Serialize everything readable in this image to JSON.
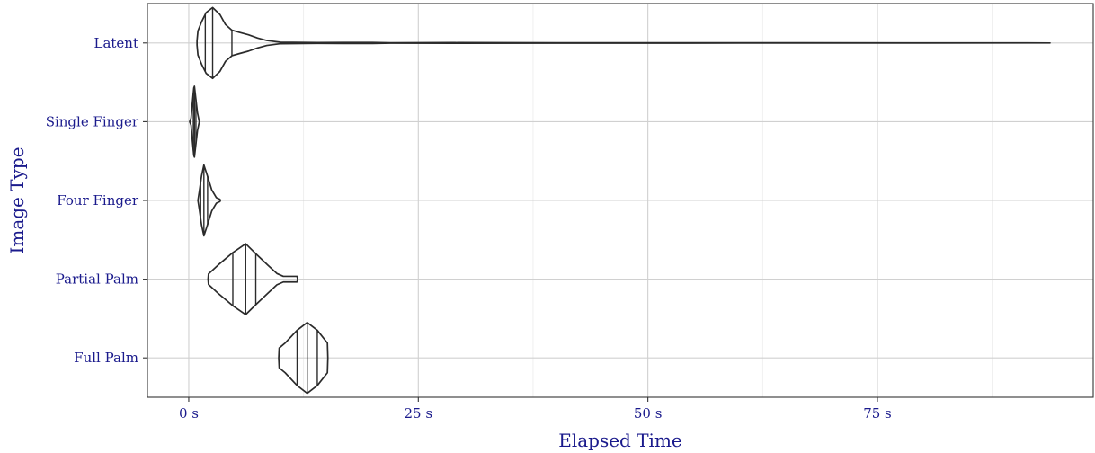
{
  "chart_data": {
    "type": "violin",
    "orientation": "horizontal",
    "xlabel": "Elapsed Time",
    "ylabel": "Image Type",
    "xlim": [
      -4.5,
      98.5
    ],
    "x_ticks": [
      {
        "value": 0,
        "label": "0 s"
      },
      {
        "value": 25,
        "label": "25 s"
      },
      {
        "value": 50,
        "label": "50 s"
      },
      {
        "value": 75,
        "label": "75 s"
      }
    ],
    "x_minor_ticks": [
      12.5,
      37.5,
      62.5,
      87.5
    ],
    "grid": true,
    "draw_quantiles": [
      0.25,
      0.5,
      0.75
    ],
    "categories": [
      "Latent",
      "Single Finger",
      "Four Finger",
      "Partial Palm",
      "Full Palm"
    ],
    "series": [
      {
        "category": "Latent",
        "quantiles": [
          1.8,
          2.6,
          4.7
        ],
        "density": [
          [
            0.9,
            0.06
          ],
          [
            1.0,
            0.34
          ],
          [
            1.4,
            0.6
          ],
          [
            1.9,
            0.86
          ],
          [
            2.6,
            1.0
          ],
          [
            3.4,
            0.8
          ],
          [
            4.0,
            0.52
          ],
          [
            4.7,
            0.36
          ],
          [
            5.5,
            0.3
          ],
          [
            6.5,
            0.23
          ],
          [
            7.5,
            0.14
          ],
          [
            8.5,
            0.07
          ],
          [
            10.0,
            0.02
          ],
          [
            14.0,
            0.012
          ],
          [
            20.0,
            0.016
          ],
          [
            22.0,
            0.006
          ],
          [
            29.0,
            0.01
          ],
          [
            40.0,
            0.006
          ],
          [
            60.0,
            0.004
          ],
          [
            80.0,
            0.003
          ],
          [
            93.8,
            0.0
          ]
        ]
      },
      {
        "category": "Single Finger",
        "quantiles": [
          0.5,
          0.62,
          0.78
        ],
        "density": [
          [
            0.1,
            0.0
          ],
          [
            0.25,
            0.1
          ],
          [
            0.4,
            0.55
          ],
          [
            0.55,
            0.95
          ],
          [
            0.62,
            1.0
          ],
          [
            0.75,
            0.7
          ],
          [
            0.95,
            0.25
          ],
          [
            1.15,
            0.0
          ]
        ]
      },
      {
        "category": "Four Finger",
        "quantiles": [
          1.3,
          1.65,
          2.05
        ],
        "density": [
          [
            1.0,
            0.0
          ],
          [
            1.15,
            0.25
          ],
          [
            1.4,
            0.7
          ],
          [
            1.65,
            1.0
          ],
          [
            2.0,
            0.72
          ],
          [
            2.5,
            0.3
          ],
          [
            3.0,
            0.08
          ],
          [
            3.4,
            0.03
          ],
          [
            3.45,
            0.0
          ]
        ]
      },
      {
        "category": "Partial Palm",
        "quantiles": [
          4.8,
          6.2,
          7.3
        ],
        "density": [
          [
            2.1,
            0.0
          ],
          [
            2.15,
            0.15
          ],
          [
            3.2,
            0.4
          ],
          [
            4.8,
            0.75
          ],
          [
            6.2,
            1.0
          ],
          [
            7.3,
            0.72
          ],
          [
            8.6,
            0.4
          ],
          [
            9.6,
            0.16
          ],
          [
            10.3,
            0.08
          ],
          [
            11.0,
            0.08
          ],
          [
            11.8,
            0.08
          ],
          [
            11.85,
            0.0
          ]
        ]
      },
      {
        "category": "Full Palm",
        "quantiles": [
          11.8,
          12.9,
          14.0
        ],
        "density": [
          [
            9.8,
            0.0
          ],
          [
            9.85,
            0.28
          ],
          [
            10.5,
            0.42
          ],
          [
            11.8,
            0.78
          ],
          [
            12.9,
            1.0
          ],
          [
            14.0,
            0.78
          ],
          [
            15.1,
            0.42
          ],
          [
            15.15,
            0.0
          ]
        ]
      }
    ]
  }
}
